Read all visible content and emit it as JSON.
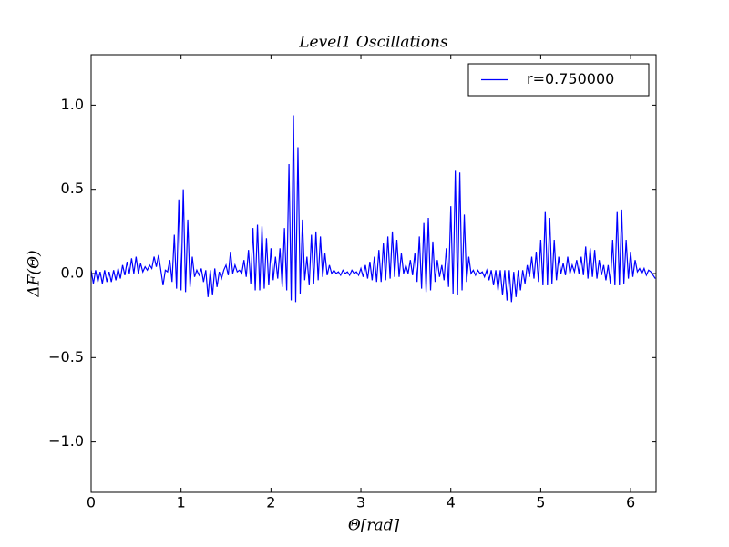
{
  "chart_data": {
    "type": "line",
    "title": "Level1 Oscillations",
    "x_label": "Θ[rad]",
    "y_label": "ΔF(Θ)",
    "xlim": [
      0,
      6.283
    ],
    "ylim": [
      -1.3,
      1.3
    ],
    "xticks": [
      0,
      1,
      2,
      3,
      4,
      5,
      6
    ],
    "yticks": [
      {
        "value": -1.0,
        "label": "−1.0"
      },
      {
        "value": -0.5,
        "label": "−0.5"
      },
      {
        "value": 0.0,
        "label": "0.0"
      },
      0.5,
      {
        "value": 1.0,
        "label": "1.0"
      }
    ],
    "legend_position": "upper right",
    "grid": false,
    "x": [
      0,
      0.025,
      0.05,
      0.075,
      0.1,
      0.125,
      0.15,
      0.175,
      0.2,
      0.225,
      0.25,
      0.275,
      0.3,
      0.325,
      0.35,
      0.375,
      0.4,
      0.425,
      0.45,
      0.475,
      0.5,
      0.525,
      0.55,
      0.575,
      0.6,
      0.625,
      0.65,
      0.675,
      0.7,
      0.725,
      0.75,
      0.775,
      0.8,
      0.825,
      0.85,
      0.875,
      0.9,
      0.925,
      0.95,
      0.975,
      1,
      1.025,
      1.05,
      1.075,
      1.1,
      1.125,
      1.15,
      1.175,
      1.2,
      1.225,
      1.25,
      1.275,
      1.3,
      1.325,
      1.35,
      1.375,
      1.4,
      1.425,
      1.45,
      1.475,
      1.5,
      1.525,
      1.55,
      1.575,
      1.6,
      1.625,
      1.65,
      1.675,
      1.7,
      1.725,
      1.75,
      1.775,
      1.8,
      1.825,
      1.85,
      1.875,
      1.9,
      1.925,
      1.95,
      1.975,
      2,
      2.025,
      2.05,
      2.075,
      2.1,
      2.125,
      2.15,
      2.175,
      2.2,
      2.225,
      2.25,
      2.275,
      2.3,
      2.325,
      2.35,
      2.375,
      2.4,
      2.425,
      2.45,
      2.475,
      2.5,
      2.525,
      2.55,
      2.575,
      2.6,
      2.625,
      2.65,
      2.675,
      2.7,
      2.725,
      2.75,
      2.775,
      2.8,
      2.825,
      2.85,
      2.875,
      2.9,
      2.925,
      2.95,
      2.975,
      3,
      3.025,
      3.05,
      3.075,
      3.1,
      3.125,
      3.15,
      3.175,
      3.2,
      3.225,
      3.25,
      3.275,
      3.3,
      3.325,
      3.35,
      3.375,
      3.4,
      3.425,
      3.45,
      3.475,
      3.5,
      3.525,
      3.55,
      3.575,
      3.6,
      3.625,
      3.65,
      3.675,
      3.7,
      3.725,
      3.75,
      3.775,
      3.8,
      3.825,
      3.85,
      3.875,
      3.9,
      3.925,
      3.95,
      3.975,
      4,
      4.025,
      4.05,
      4.075,
      4.1,
      4.125,
      4.15,
      4.175,
      4.2,
      4.225,
      4.25,
      4.275,
      4.3,
      4.325,
      4.35,
      4.375,
      4.4,
      4.425,
      4.45,
      4.475,
      4.5,
      4.525,
      4.55,
      4.575,
      4.6,
      4.625,
      4.65,
      4.675,
      4.7,
      4.725,
      4.75,
      4.775,
      4.8,
      4.825,
      4.85,
      4.875,
      4.9,
      4.925,
      4.95,
      4.975,
      5,
      5.025,
      5.05,
      5.075,
      5.1,
      5.125,
      5.15,
      5.175,
      5.2,
      5.225,
      5.25,
      5.275,
      5.3,
      5.325,
      5.35,
      5.375,
      5.4,
      5.425,
      5.45,
      5.475,
      5.5,
      5.525,
      5.55,
      5.575,
      5.6,
      5.625,
      5.65,
      5.675,
      5.7,
      5.725,
      5.75,
      5.775,
      5.8,
      5.825,
      5.85,
      5.875,
      5.9,
      5.925,
      5.95,
      5.975,
      6,
      6.025,
      6.05,
      6.075,
      6.1,
      6.125,
      6.15,
      6.175,
      6.2,
      6.225,
      6.25,
      6.275
    ],
    "series": [
      {
        "name": "r=0.750000",
        "color": "#0000ff",
        "values": [
          0.02,
          -0.06,
          0.02,
          -0.05,
          0.01,
          -0.06,
          0.02,
          -0.05,
          0.01,
          -0.05,
          0.02,
          -0.04,
          0.03,
          -0.03,
          0.05,
          -0.01,
          0.07,
          0,
          0.09,
          0,
          0.1,
          0,
          0.06,
          0.01,
          0.04,
          0.02,
          0.05,
          0.03,
          0.1,
          0.04,
          0.11,
          0.02,
          -0.07,
          0.02,
          0.01,
          0.08,
          -0.05,
          0.23,
          -0.09,
          0.44,
          -0.1,
          0.5,
          -0.11,
          0.32,
          -0.08,
          0.1,
          -0.02,
          0.02,
          -0.01,
          0.03,
          -0.05,
          0.02,
          -0.14,
          0.02,
          -0.13,
          0.03,
          -0.08,
          0.01,
          -0.03,
          0.02,
          0.05,
          -0.01,
          0.13,
          0,
          0.05,
          0.01,
          0.02,
          0,
          0.08,
          -0.02,
          0.14,
          -0.06,
          0.27,
          -0.1,
          0.29,
          -0.1,
          0.28,
          -0.09,
          0.21,
          -0.07,
          0.15,
          -0.04,
          0.1,
          -0.03,
          0.15,
          -0.08,
          0.27,
          -0.1,
          0.65,
          -0.16,
          0.94,
          -0.17,
          0.75,
          -0.12,
          0.32,
          -0.04,
          0.1,
          -0.07,
          0.23,
          -0.06,
          0.25,
          -0.04,
          0.22,
          -0.02,
          0.12,
          -0.01,
          0.05,
          0,
          0.02,
          0,
          0.01,
          -0.01,
          0.02,
          0,
          0.01,
          -0.01,
          0.02,
          0,
          0.01,
          -0.01,
          0.03,
          -0.02,
          0.05,
          -0.03,
          0.07,
          -0.04,
          0.1,
          -0.05,
          0.14,
          -0.05,
          0.18,
          -0.04,
          0.22,
          -0.03,
          0.25,
          -0.02,
          0.2,
          -0.02,
          0.12,
          0,
          0.05,
          0,
          0.08,
          -0.01,
          0.12,
          -0.05,
          0.22,
          -0.09,
          0.3,
          -0.11,
          0.33,
          -0.1,
          0.19,
          -0.05,
          0.08,
          -0.02,
          0.05,
          -0.04,
          0.15,
          -0.08,
          0.4,
          -0.12,
          0.61,
          -0.13,
          0.6,
          -0.1,
          0.35,
          -0.05,
          0.1,
          0,
          0.02,
          -0.01,
          0.02,
          0,
          0.01,
          -0.02,
          0.02,
          -0.04,
          0.02,
          -0.07,
          0.02,
          -0.1,
          0.02,
          -0.13,
          0.02,
          -0.16,
          0.02,
          -0.17,
          0.01,
          -0.14,
          0.02,
          -0.1,
          0.02,
          -0.06,
          0.05,
          -0.02,
          0.1,
          -0.03,
          0.13,
          -0.05,
          0.2,
          -0.07,
          0.37,
          -0.07,
          0.33,
          -0.06,
          0.2,
          -0.04,
          0.1,
          0,
          0.06,
          -0.01,
          0.1,
          0,
          0.05,
          0.01,
          0.08,
          0,
          0.1,
          -0.01,
          0.16,
          -0.03,
          0.15,
          -0.02,
          0.14,
          -0.03,
          0.08,
          -0.01,
          0.05,
          -0.04,
          0.05,
          -0.06,
          0.2,
          -0.07,
          0.37,
          -0.07,
          0.38,
          -0.06,
          0.2,
          -0.03,
          0.13,
          -0.02,
          0.08,
          0.01,
          0.03,
          0,
          0.03,
          -0.01,
          0.02,
          0.01,
          -0.01,
          -0.03
        ]
      }
    ]
  }
}
